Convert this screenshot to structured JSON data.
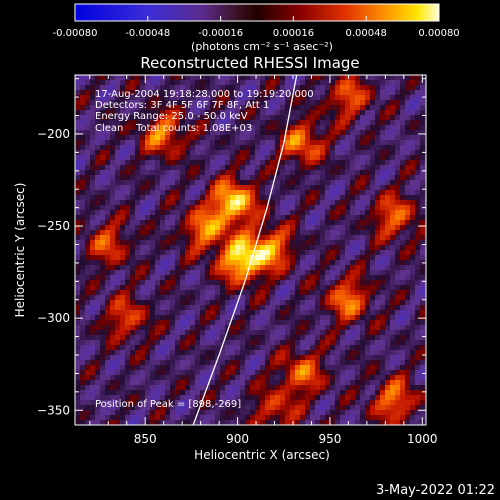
{
  "chart_data": {
    "type": "heatmap",
    "title": "Reconstructed RHESSI Image",
    "xlabel": "Heliocentric X (arcsec)",
    "ylabel": "Heliocentric Y (arcsec)",
    "xlim": [
      812,
      1002
    ],
    "ylim": [
      -358,
      -168
    ],
    "x_ticks": [
      850,
      900,
      950,
      1000
    ],
    "y_ticks": [
      -200,
      -250,
      -300,
      -350
    ],
    "colorbar": {
      "range": [
        -0.0008,
        0.0008
      ],
      "tick_values": [
        -0.0008,
        -0.00048,
        -0.00016,
        0.00016,
        0.00048,
        0.0008
      ],
      "tick_labels": [
        "-0.00080",
        "-0.00048",
        "-0.00016",
        "0.00016",
        "0.00048",
        "0.00080"
      ],
      "unit_label": "(photons cm⁻² s⁻¹ asec⁻²)"
    },
    "annotations": [
      "17-Aug-2004 19:18:28.000 to 19:19:20.000",
      "Detectors: 3F 4F 5F 6F 7F 8F, Att 1",
      "Energy Range: 25.0 - 50.0 keV",
      "Clean    Total counts: 1.08E+03"
    ],
    "peak_label": "Position of Peak = [898,-269]",
    "peak_position": [
      898,
      -269
    ],
    "limb_curve": [
      [
        876,
        -358
      ],
      [
        890,
        -320
      ],
      [
        904,
        -280
      ],
      [
        916,
        -240
      ],
      [
        925,
        -205
      ],
      [
        932,
        -168
      ]
    ],
    "sources": [
      {
        "x": 898,
        "y": -237,
        "amp": 1.0
      },
      {
        "x": 902,
        "y": -269,
        "amp": 1.0
      },
      {
        "x": 882,
        "y": -252,
        "amp": 0.7
      },
      {
        "x": 918,
        "y": -262,
        "amp": 0.75
      },
      {
        "x": 860,
        "y": -200,
        "amp": 0.7
      },
      {
        "x": 935,
        "y": -205,
        "amp": 0.7
      },
      {
        "x": 985,
        "y": -245,
        "amp": 0.65
      },
      {
        "x": 960,
        "y": -290,
        "amp": 0.7
      },
      {
        "x": 935,
        "y": -330,
        "amp": 0.65
      },
      {
        "x": 985,
        "y": -345,
        "amp": 0.7
      },
      {
        "x": 840,
        "y": -300,
        "amp": 0.55
      },
      {
        "x": 960,
        "y": -180,
        "amp": 0.6
      },
      {
        "x": 920,
        "y": -350,
        "amp": 0.5
      },
      {
        "x": 830,
        "y": -260,
        "amp": 0.55
      }
    ]
  },
  "footer": {
    "date": "3-May-2022 01:22"
  }
}
